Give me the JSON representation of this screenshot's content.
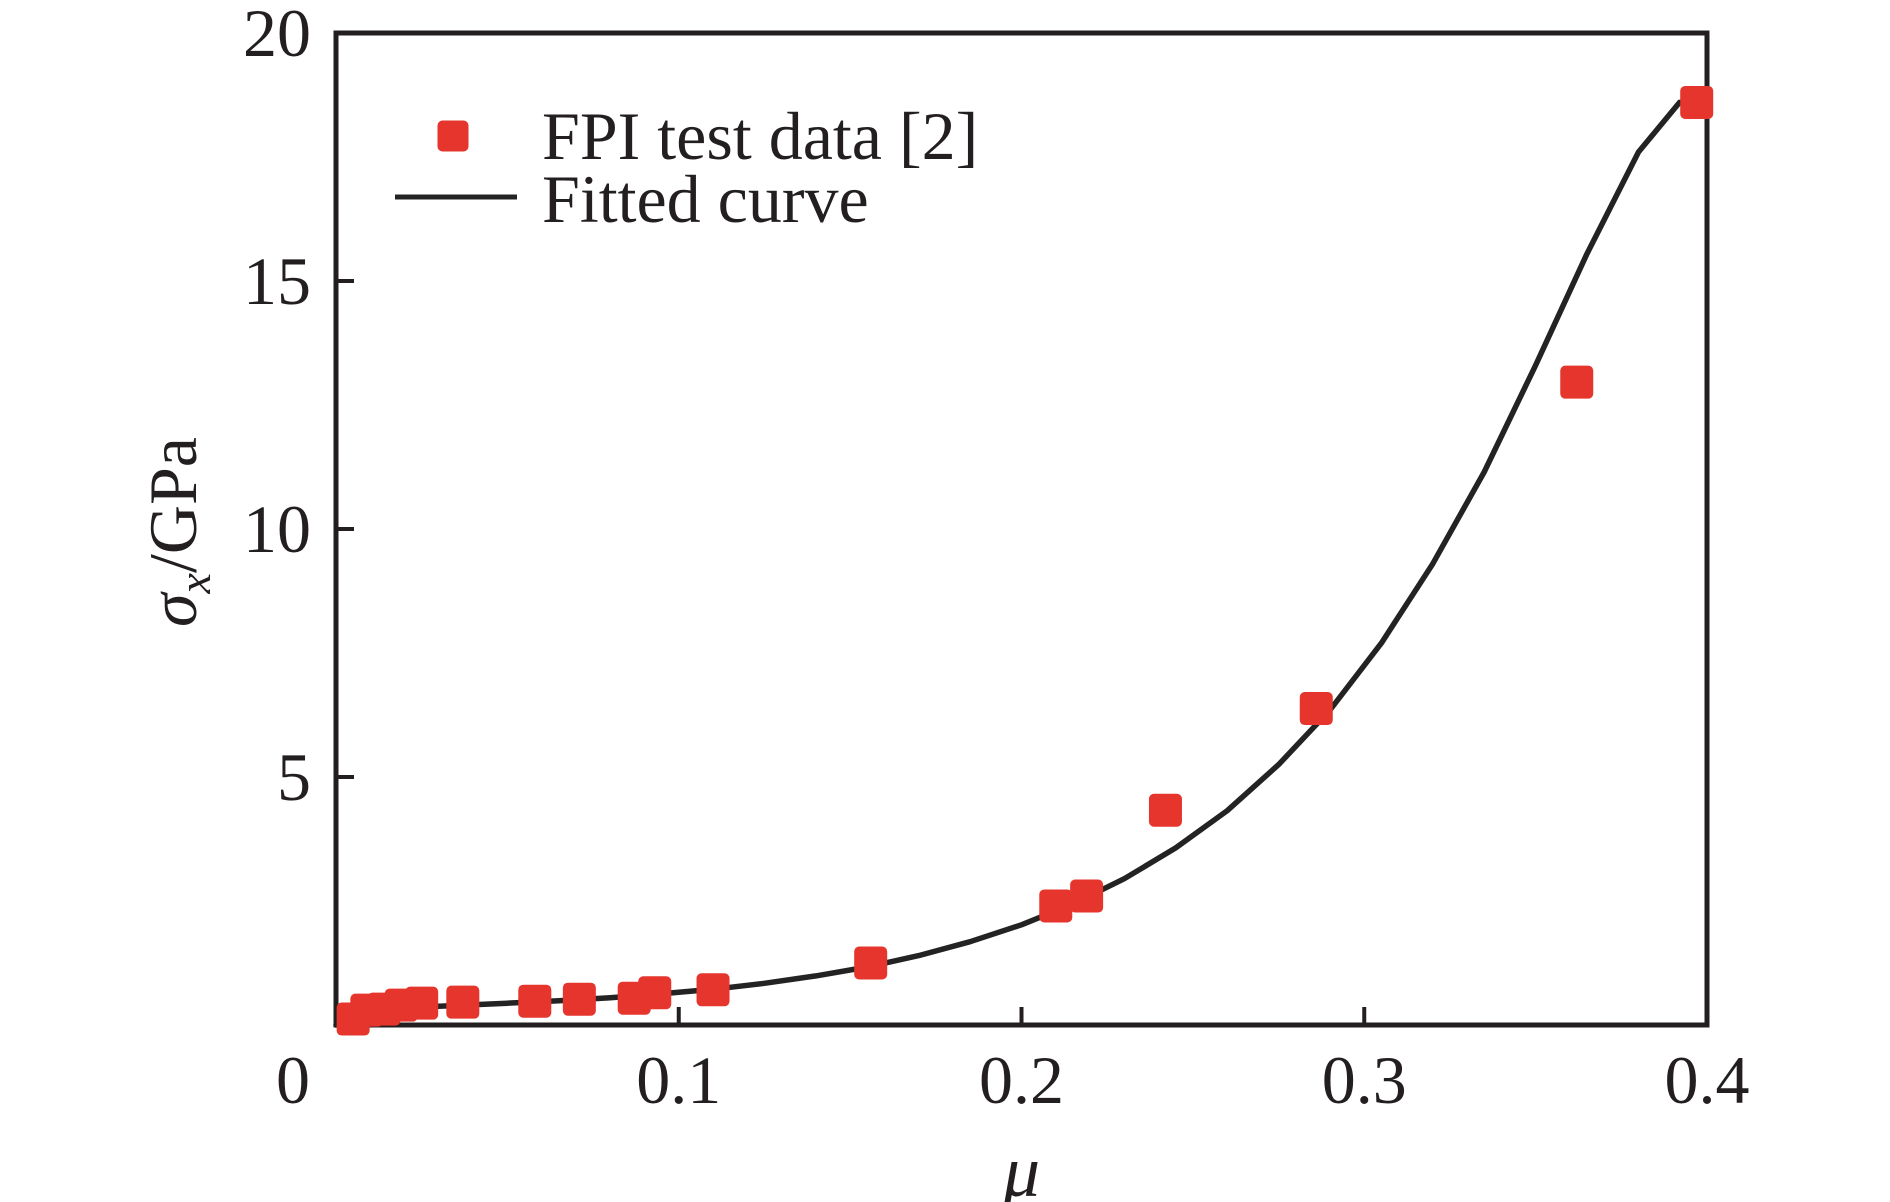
{
  "figure": {
    "background": "#FFFFFF",
    "text_color": "#231F20",
    "axis_color": "#231F20"
  },
  "chart_data": {
    "type": "scatter",
    "title": "",
    "grid": "off",
    "x_axis": {
      "label": "μ",
      "min": 0,
      "max": 0.4,
      "ticks": [
        {
          "value": 0,
          "label": "0"
        },
        {
          "value": 0.1,
          "label": "0.1"
        },
        {
          "value": 0.2,
          "label": "0.2"
        },
        {
          "value": 0.3,
          "label": "0.3"
        },
        {
          "value": 0.4,
          "label": "0.4"
        }
      ]
    },
    "y_axis": {
      "label": "σx/GPa",
      "symbol": "σ",
      "subscript": "x",
      "unit": "/GPa",
      "min": 0,
      "max": 20,
      "ticks": [
        {
          "value": 5,
          "label": "5"
        },
        {
          "value": 10,
          "label": "10"
        },
        {
          "value": 15,
          "label": "15"
        },
        {
          "value": 20,
          "label": "20"
        }
      ]
    },
    "legend": {
      "position": "top-left",
      "items": [
        {
          "label": "FPI test data [2]",
          "marker": "square",
          "color": "#E5352D"
        },
        {
          "label": "Fitted curve",
          "marker": "line",
          "color": "#232323"
        }
      ]
    },
    "series": [
      {
        "name": "FPI test data [2]",
        "type": "scatter",
        "marker": "square",
        "color": "#E5352D",
        "points": [
          [
            0.005,
            0.12
          ],
          [
            0.009,
            0.3
          ],
          [
            0.014,
            0.32
          ],
          [
            0.019,
            0.4
          ],
          [
            0.025,
            0.44
          ],
          [
            0.037,
            0.46
          ],
          [
            0.058,
            0.48
          ],
          [
            0.071,
            0.52
          ],
          [
            0.087,
            0.54
          ],
          [
            0.093,
            0.65
          ],
          [
            0.11,
            0.71
          ],
          [
            0.156,
            1.25
          ],
          [
            0.21,
            2.4
          ],
          [
            0.219,
            2.6
          ],
          [
            0.242,
            4.33
          ],
          [
            0.286,
            6.38
          ],
          [
            0.362,
            12.96
          ],
          [
            0.397,
            18.6
          ]
        ]
      },
      {
        "name": "Fitted curve",
        "type": "line",
        "color": "#232323",
        "points": [
          [
            0.0,
            0.0
          ],
          [
            0.002,
            0.1
          ],
          [
            0.004,
            0.17
          ],
          [
            0.007,
            0.23
          ],
          [
            0.01,
            0.27
          ],
          [
            0.015,
            0.31
          ],
          [
            0.02,
            0.34
          ],
          [
            0.03,
            0.38
          ],
          [
            0.04,
            0.41
          ],
          [
            0.05,
            0.44
          ],
          [
            0.065,
            0.49
          ],
          [
            0.08,
            0.55
          ],
          [
            0.095,
            0.63
          ],
          [
            0.11,
            0.72
          ],
          [
            0.125,
            0.84
          ],
          [
            0.14,
            0.99
          ],
          [
            0.155,
            1.17
          ],
          [
            0.17,
            1.4
          ],
          [
            0.185,
            1.68
          ],
          [
            0.2,
            2.02
          ],
          [
            0.215,
            2.44
          ],
          [
            0.23,
            2.95
          ],
          [
            0.245,
            3.57
          ],
          [
            0.26,
            4.32
          ],
          [
            0.275,
            5.25
          ],
          [
            0.29,
            6.35
          ],
          [
            0.305,
            7.7
          ],
          [
            0.32,
            9.3
          ],
          [
            0.335,
            11.15
          ],
          [
            0.35,
            13.3
          ],
          [
            0.365,
            15.55
          ],
          [
            0.38,
            17.6
          ],
          [
            0.392,
            18.6
          ]
        ]
      }
    ]
  }
}
